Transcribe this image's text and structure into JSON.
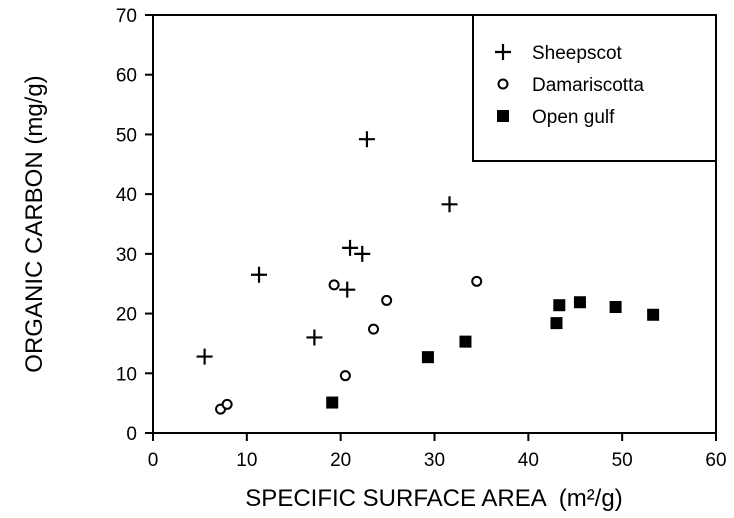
{
  "chart_data": {
    "type": "scatter",
    "title": "",
    "xlabel": "SPECIFIC SURFACE AREA",
    "xlabel_unit": "(m²/g)",
    "ylabel": "ORGANIC CARBON  (mg/g)",
    "xlim": [
      0,
      60
    ],
    "ylim": [
      0,
      70
    ],
    "xticks": [
      0,
      10,
      20,
      30,
      40,
      50,
      60
    ],
    "yticks": [
      0,
      10,
      20,
      30,
      40,
      50,
      60,
      70
    ],
    "grid": false,
    "legend_position": "top-right",
    "series": [
      {
        "name": "Sheepscot",
        "marker": "plus",
        "points": [
          {
            "x": 5.5,
            "y": 12.8
          },
          {
            "x": 11.3,
            "y": 26.5
          },
          {
            "x": 17.2,
            "y": 16.0
          },
          {
            "x": 20.7,
            "y": 24.0
          },
          {
            "x": 21.0,
            "y": 31.0
          },
          {
            "x": 22.3,
            "y": 30.0
          },
          {
            "x": 22.8,
            "y": 49.2
          },
          {
            "x": 31.6,
            "y": 38.3
          }
        ]
      },
      {
        "name": "Damariscotta",
        "marker": "open-circle",
        "points": [
          {
            "x": 7.2,
            "y": 4.0
          },
          {
            "x": 7.9,
            "y": 4.8
          },
          {
            "x": 19.3,
            "y": 24.8
          },
          {
            "x": 20.5,
            "y": 9.6
          },
          {
            "x": 23.5,
            "y": 17.4
          },
          {
            "x": 24.9,
            "y": 22.2
          },
          {
            "x": 34.5,
            "y": 25.4
          }
        ]
      },
      {
        "name": "Open gulf",
        "marker": "filled-square",
        "points": [
          {
            "x": 19.1,
            "y": 5.1
          },
          {
            "x": 29.3,
            "y": 12.7
          },
          {
            "x": 33.3,
            "y": 15.3
          },
          {
            "x": 43.0,
            "y": 18.4
          },
          {
            "x": 43.3,
            "y": 21.4
          },
          {
            "x": 45.5,
            "y": 21.9
          },
          {
            "x": 49.3,
            "y": 21.1
          },
          {
            "x": 53.3,
            "y": 19.8
          }
        ]
      }
    ]
  }
}
